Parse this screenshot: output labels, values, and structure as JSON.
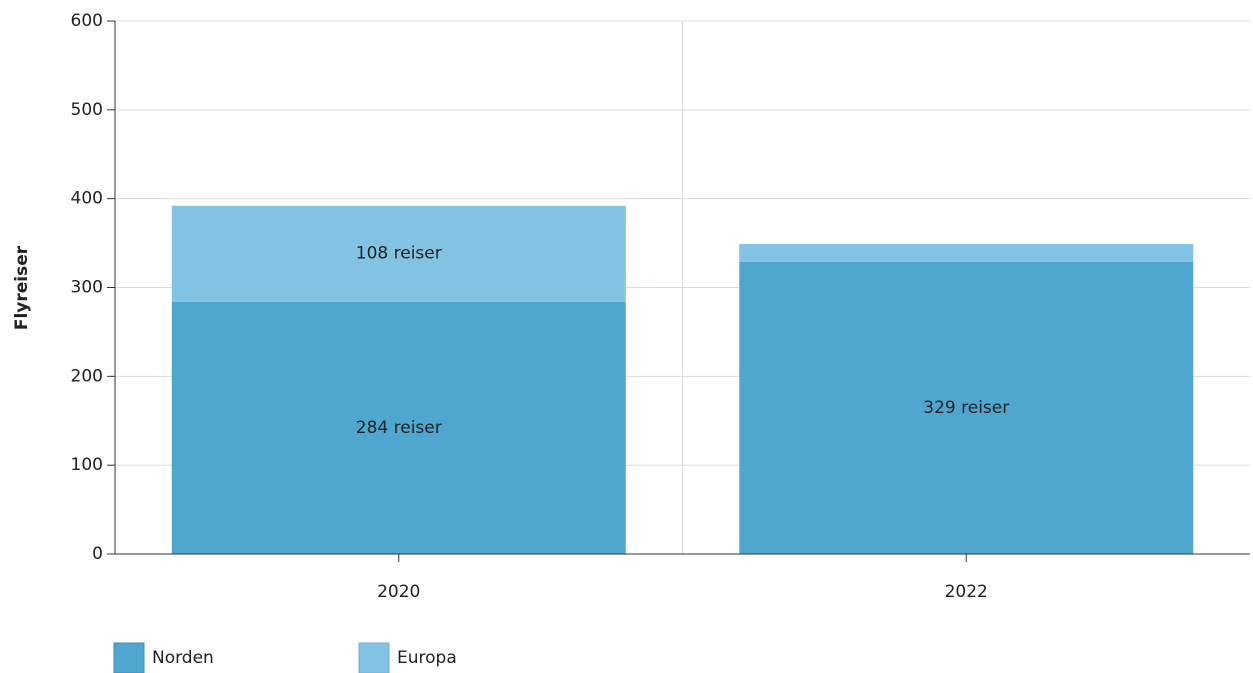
{
  "chart_data": {
    "type": "stacked_bar",
    "y_label": "Flyreiser",
    "categories": [
      "2020",
      "2022"
    ],
    "series": [
      {
        "name": "Norden",
        "color": "#4fa6cf",
        "values": [
          284,
          329
        ],
        "value_labels": [
          "284 reiser",
          "329 reiser"
        ]
      },
      {
        "name": "Europa",
        "color": "#82c3e3",
        "values": [
          108,
          20
        ],
        "value_labels": [
          "108 reiser",
          null
        ]
      }
    ],
    "ylim": [
      0,
      600
    ],
    "yticks": [
      0,
      100,
      200,
      300,
      400,
      500,
      600
    ],
    "grid": true,
    "legend": "bottom-left"
  }
}
